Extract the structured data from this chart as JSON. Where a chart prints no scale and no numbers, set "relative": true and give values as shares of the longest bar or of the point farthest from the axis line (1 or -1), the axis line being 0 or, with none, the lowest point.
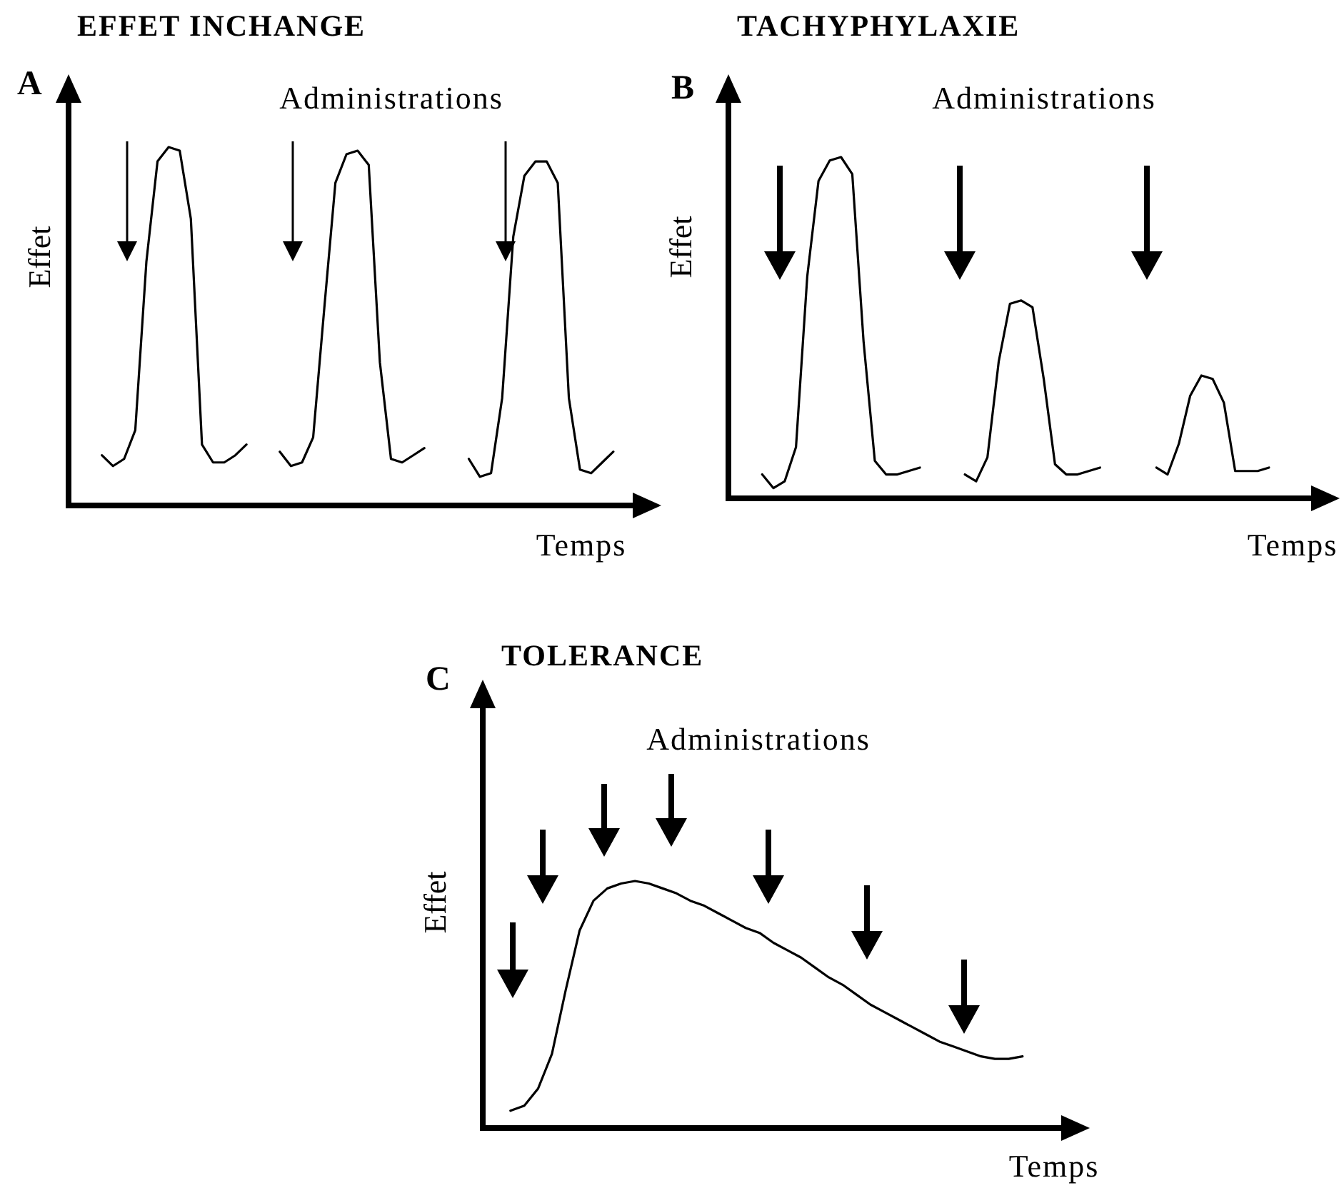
{
  "chart_data": [
    {
      "type": "line",
      "title": "EFFET INCHANGE",
      "xlabel": "Temps",
      "ylabel": "Effet",
      "annotations": [
        "A",
        "Administrations"
      ],
      "relative": true,
      "tick_labels": false,
      "categories": [
        null,
        null,
        null,
        null,
        null,
        null,
        null,
        null,
        null,
        null,
        null,
        null,
        null,
        null,
        null,
        null,
        null,
        null,
        null,
        null,
        null,
        null,
        null,
        null,
        null,
        null,
        null,
        null,
        null,
        null,
        null,
        null,
        null,
        null,
        null,
        null,
        null,
        null,
        null,
        null,
        null,
        null,
        null,
        null,
        null,
        null,
        null,
        null,
        null,
        null,
        null,
        null
      ],
      "series": [
        {
          "color": "#000000",
          "values": [
            null,
            null,
            null,
            0.14,
            0.11,
            0.13,
            0.21,
            0.68,
            0.96,
            1.0,
            0.99,
            0.8,
            0.17,
            0.12,
            0.12,
            0.14,
            0.17,
            null,
            null,
            null,
            null,
            null,
            null,
            null,
            null,
            null,
            null,
            null,
            null,
            null,
            null,
            null,
            null,
            null,
            null,
            null,
            null,
            null,
            null,
            null,
            null,
            null,
            null,
            null,
            null,
            null,
            null,
            null,
            null,
            null,
            null,
            null
          ]
        },
        {
          "color": "#000000",
          "values": [
            null,
            null,
            null,
            null,
            null,
            null,
            null,
            null,
            null,
            null,
            null,
            null,
            null,
            null,
            null,
            null,
            null,
            null,
            null,
            0.15,
            0.11,
            0.12,
            0.19,
            0.55,
            0.9,
            0.98,
            0.99,
            0.95,
            0.4,
            0.13,
            0.12,
            0.14,
            0.16,
            null,
            null,
            null,
            null,
            null,
            null,
            null,
            null,
            null,
            null,
            null,
            null,
            null,
            null,
            null,
            null,
            null,
            null,
            null
          ]
        },
        {
          "color": "#000000",
          "values": [
            null,
            null,
            null,
            null,
            null,
            null,
            null,
            null,
            null,
            null,
            null,
            null,
            null,
            null,
            null,
            null,
            null,
            null,
            null,
            null,
            null,
            null,
            null,
            null,
            null,
            null,
            null,
            null,
            null,
            null,
            null,
            null,
            null,
            null,
            null,
            null,
            0.13,
            0.08,
            0.09,
            0.3,
            0.75,
            0.92,
            0.96,
            0.96,
            0.9,
            0.3,
            0.1,
            0.09,
            0.12,
            0.15,
            null,
            null
          ]
        }
      ]
    },
    {
      "type": "line",
      "title": "TACHYPHYLAXIE",
      "xlabel": "Temps",
      "ylabel": "Effet",
      "annotations": [
        "B",
        "Administrations"
      ],
      "relative": true,
      "tick_labels": false,
      "categories": [
        null,
        null,
        null,
        null,
        null,
        null,
        null,
        null,
        null,
        null,
        null,
        null,
        null,
        null,
        null,
        null,
        null,
        null,
        null,
        null,
        null,
        null,
        null,
        null,
        null,
        null,
        null,
        null,
        null,
        null,
        null,
        null,
        null,
        null,
        null,
        null,
        null,
        null,
        null,
        null,
        null,
        null,
        null,
        null,
        null,
        null,
        null,
        null,
        null,
        null,
        null,
        null,
        null
      ],
      "series": [
        {
          "color": "#000000",
          "values": [
            null,
            null,
            null,
            0.07,
            0.03,
            0.05,
            0.15,
            0.65,
            0.93,
            0.99,
            1.0,
            0.95,
            0.46,
            0.11,
            0.07,
            0.07,
            0.08,
            0.09,
            null,
            null,
            null,
            null,
            null,
            null,
            null,
            null,
            null,
            null,
            null,
            null,
            null,
            null,
            null,
            null,
            null,
            null,
            null,
            null,
            null,
            null,
            null,
            null,
            null,
            null,
            null,
            null,
            null,
            null,
            null,
            null,
            null,
            null,
            null
          ]
        },
        {
          "color": "#000000",
          "values": [
            null,
            null,
            null,
            null,
            null,
            null,
            null,
            null,
            null,
            null,
            null,
            null,
            null,
            null,
            null,
            null,
            null,
            null,
            null,
            null,
            null,
            0.07,
            0.05,
            0.12,
            0.4,
            0.57,
            0.58,
            0.56,
            0.35,
            0.1,
            0.07,
            0.07,
            0.08,
            0.09,
            null,
            null,
            null,
            null,
            null,
            null,
            null,
            null,
            null,
            null,
            null,
            null,
            null,
            null,
            null,
            null,
            null,
            null,
            null
          ]
        },
        {
          "color": "#000000",
          "values": [
            null,
            null,
            null,
            null,
            null,
            null,
            null,
            null,
            null,
            null,
            null,
            null,
            null,
            null,
            null,
            null,
            null,
            null,
            null,
            null,
            null,
            null,
            null,
            null,
            null,
            null,
            null,
            null,
            null,
            null,
            null,
            null,
            null,
            null,
            null,
            null,
            null,
            null,
            0.09,
            0.07,
            0.16,
            0.3,
            0.36,
            0.35,
            0.28,
            0.08,
            0.08,
            0.08,
            0.09,
            null,
            null,
            null,
            null
          ]
        }
      ]
    },
    {
      "type": "line",
      "title": "TOLERANCE",
      "xlabel": "Temps",
      "ylabel": "Effet",
      "annotations": [
        "C",
        "Administrations"
      ],
      "relative": true,
      "tick_labels": false,
      "categories": [
        null,
        null,
        null,
        null,
        null,
        null,
        null,
        null,
        null,
        null,
        null,
        null,
        null,
        null,
        null,
        null,
        null,
        null,
        null,
        null,
        null,
        null,
        null,
        null,
        null,
        null,
        null,
        null,
        null,
        null,
        null,
        null,
        null,
        null,
        null,
        null,
        null,
        null,
        null,
        null,
        null,
        null,
        null
      ],
      "series": [
        {
          "color": "#000000",
          "values": [
            null,
            null,
            0.07,
            0.09,
            0.16,
            0.3,
            0.56,
            0.8,
            0.92,
            0.97,
            0.99,
            1.0,
            0.99,
            0.97,
            0.95,
            0.92,
            0.9,
            0.87,
            0.84,
            0.81,
            0.79,
            0.75,
            0.72,
            0.69,
            0.65,
            0.61,
            0.58,
            0.54,
            0.5,
            0.47,
            0.44,
            0.41,
            0.38,
            0.35,
            0.33,
            0.31,
            0.29,
            0.28,
            0.28,
            0.29,
            null,
            null,
            null
          ]
        }
      ]
    }
  ]
}
